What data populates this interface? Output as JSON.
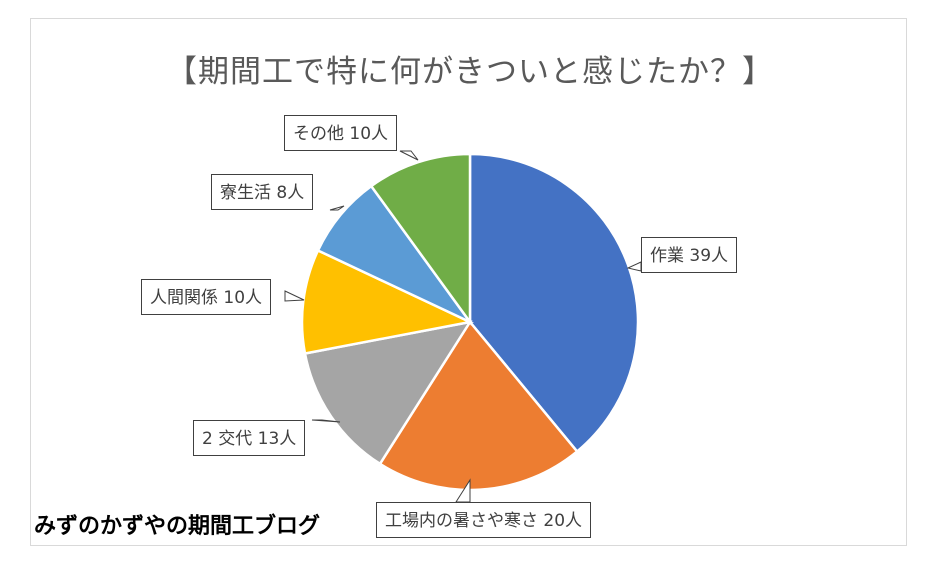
{
  "chart_data": {
    "type": "pie",
    "title": "【期間工で特に何がきついと感じたか？】",
    "slices": [
      {
        "label": "作業",
        "value": 39,
        "display": "作業 39人",
        "color": "#4472C4"
      },
      {
        "label": "工場内の暑さや寒さ",
        "value": 20,
        "display": "工場内の暑さや寒さ 20人",
        "color": "#ED7D31"
      },
      {
        "label": "2交代",
        "value": 13,
        "display": "2 交代 13人",
        "color": "#A5A5A5"
      },
      {
        "label": "人間関係",
        "value": 10,
        "display": "人間関係 10人",
        "color": "#FFC000"
      },
      {
        "label": "寮生活",
        "value": 8,
        "display": "寮生活 8人",
        "color": "#5B9BD5"
      },
      {
        "label": "その他",
        "value": 10,
        "display": "その他 10人",
        "color": "#70AD47"
      }
    ],
    "legend": "none"
  },
  "watermark": "みずのかずやの期間工ブログ"
}
